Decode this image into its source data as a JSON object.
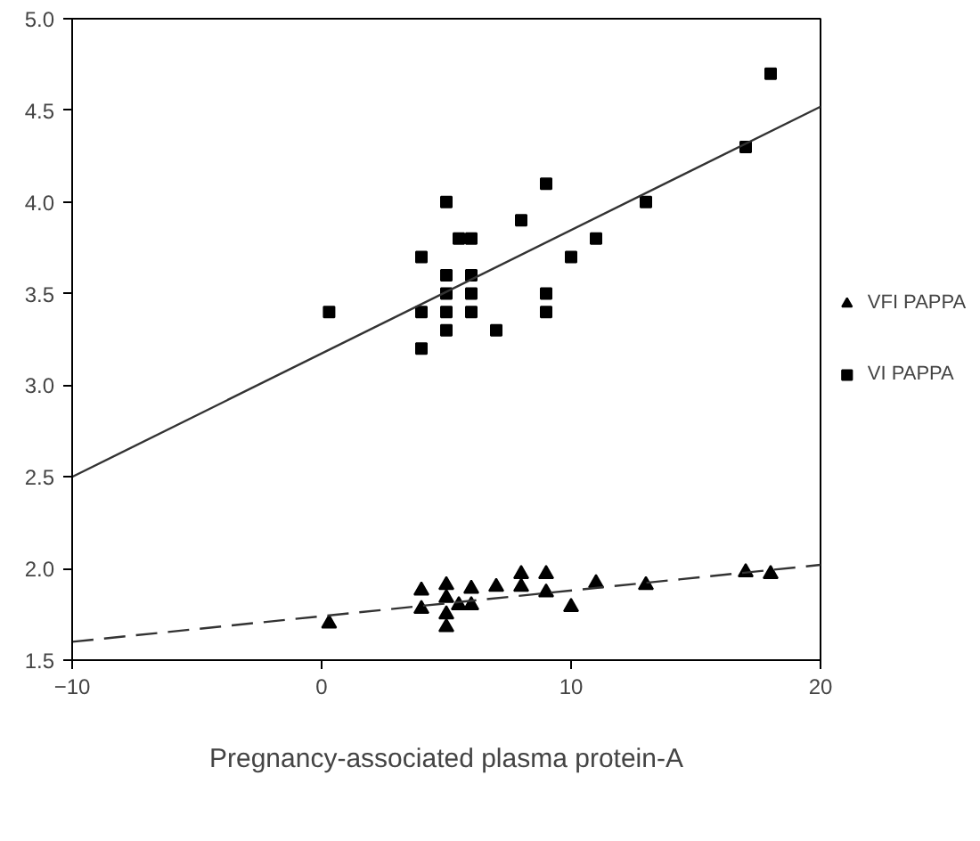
{
  "chart_data": {
    "type": "scatter",
    "xlabel": "Pregnancy-associated plasma protein-A",
    "xlim": [
      -10,
      20
    ],
    "ylim": [
      1.5,
      5.0
    ],
    "xticks": [
      -10,
      0,
      10,
      20
    ],
    "yticks": [
      1.5,
      {
        "value": 2.0,
        "label": "2.0"
      },
      2.5,
      {
        "value": 3.0,
        "label": "3.0"
      },
      3.5,
      {
        "value": 4.0,
        "label": "4.0"
      },
      4.5,
      {
        "value": 5.0,
        "label": "5.0"
      }
    ],
    "grid": false,
    "legend": "right",
    "series": [
      {
        "name": "VFI PAPPA",
        "color": "#000000",
        "marker": "triangle",
        "x": [
          0.3,
          4,
          4,
          5,
          5,
          5,
          5,
          5.5,
          6,
          6,
          7,
          8,
          8,
          9,
          9,
          10,
          11,
          13,
          17,
          18
        ],
        "values": [
          1.7,
          1.88,
          1.78,
          1.91,
          1.84,
          1.75,
          1.68,
          1.8,
          1.89,
          1.8,
          1.9,
          1.97,
          1.9,
          1.97,
          1.87,
          1.79,
          1.92,
          1.91,
          1.98,
          1.97
        ]
      },
      {
        "type": "line",
        "color": "#333333",
        "line_style": "dashed",
        "marker": "none",
        "x": [
          -10,
          20
        ],
        "values": [
          1.6,
          2.02
        ]
      },
      {
        "name": "VI PAPPA",
        "color": "#000000",
        "marker": "square",
        "x": [
          0.3,
          4,
          4,
          4,
          5,
          5,
          5,
          5,
          5,
          5.5,
          6,
          6,
          6,
          6,
          7,
          8,
          9,
          9,
          9,
          10,
          11,
          13,
          17,
          18
        ],
        "values": [
          3.4,
          3.7,
          3.4,
          3.2,
          4.0,
          3.6,
          3.5,
          3.4,
          3.3,
          3.8,
          3.8,
          3.6,
          3.5,
          3.4,
          3.3,
          3.9,
          4.1,
          3.5,
          3.4,
          3.7,
          3.8,
          4.0,
          4.3,
          4.7
        ]
      },
      {
        "type": "line",
        "color": "#333333",
        "line_style": "solid",
        "marker": "none",
        "x": [
          -10,
          20
        ],
        "values": [
          2.5,
          4.52
        ]
      }
    ]
  }
}
